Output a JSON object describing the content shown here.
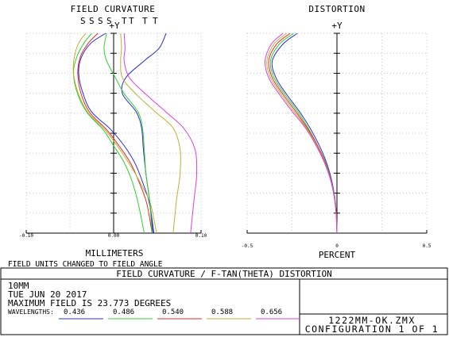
{
  "chart_data": [
    {
      "type": "line",
      "title": "FIELD CURVATURE",
      "xlabel": "MILLIMETERS",
      "ylabel": "+Y",
      "xlim": [
        -0.1,
        0.1
      ],
      "ylim": [
        0,
        23.773
      ],
      "x_ticks": [
        "-0.10",
        "0.00",
        "0.10"
      ],
      "legend": [
        "S",
        "S",
        "S",
        "S",
        "T",
        "T",
        "T",
        "T"
      ],
      "grid": true,
      "series": [
        {
          "name": "S",
          "color": "#2b2bd6",
          "points": [
            [
              -0.009,
              23.773
            ],
            [
              -0.026,
              22.6
            ],
            [
              -0.037,
              20.9
            ],
            [
              -0.04,
              19.0
            ],
            [
              -0.035,
              16.6
            ],
            [
              -0.025,
              14.4
            ],
            [
              -0.004,
              12.4
            ],
            [
              0.012,
              10.4
            ],
            [
              0.024,
              8.4
            ],
            [
              0.033,
              6.1
            ],
            [
              0.041,
              3.5
            ],
            [
              0.046,
              0
            ]
          ]
        },
        {
          "name": "S",
          "color": "#2fd02f",
          "points": [
            [
              -0.025,
              23.773
            ],
            [
              -0.034,
              22.6
            ],
            [
              -0.042,
              21.0
            ],
            [
              -0.046,
              19.0
            ],
            [
              -0.041,
              16.5
            ],
            [
              -0.03,
              14.3
            ],
            [
              -0.012,
              12.3
            ],
            [
              0.0,
              10.4
            ],
            [
              0.012,
              8.4
            ],
            [
              0.021,
              6.2
            ],
            [
              0.028,
              3.6
            ],
            [
              0.035,
              0
            ]
          ]
        },
        {
          "name": "S",
          "color": "#e02a2a",
          "points": [
            [
              -0.018,
              23.773
            ],
            [
              -0.029,
              22.6
            ],
            [
              -0.038,
              21.0
            ],
            [
              -0.041,
              19.0
            ],
            [
              -0.037,
              16.5
            ],
            [
              -0.027,
              14.3
            ],
            [
              -0.008,
              12.3
            ],
            [
              0.006,
              10.4
            ],
            [
              0.019,
              8.4
            ],
            [
              0.029,
              6.1
            ],
            [
              0.038,
              3.5
            ],
            [
              0.044,
              0
            ]
          ]
        },
        {
          "name": "S",
          "color": "#c0b030",
          "points": [
            [
              -0.032,
              23.773
            ],
            [
              -0.04,
              22.6
            ],
            [
              -0.045,
              20.9
            ],
            [
              -0.046,
              19.0
            ],
            [
              -0.04,
              16.5
            ],
            [
              -0.029,
              14.3
            ],
            [
              -0.01,
              12.3
            ],
            [
              0.004,
              10.4
            ],
            [
              0.017,
              8.4
            ],
            [
              0.03,
              6.1
            ],
            [
              0.042,
              3.5
            ],
            [
              0.049,
              0
            ]
          ]
        },
        {
          "name": "T",
          "color": "#2b2bd6",
          "points": [
            [
              0.06,
              23.773
            ],
            [
              0.052,
              22.0
            ],
            [
              0.035,
              20.5
            ],
            [
              0.014,
              18.5
            ],
            [
              0.01,
              16.6
            ],
            [
              0.026,
              14.4
            ],
            [
              0.032,
              12.5
            ],
            [
              0.034,
              10.0
            ],
            [
              0.037,
              7.0
            ],
            [
              0.041,
              4.0
            ],
            [
              0.045,
              0
            ]
          ]
        },
        {
          "name": "T",
          "color": "#2fd02f",
          "points": [
            [
              -0.008,
              23.773
            ],
            [
              -0.011,
              22.0
            ],
            [
              -0.008,
              20.5
            ],
            [
              0.002,
              18.5
            ],
            [
              0.012,
              16.6
            ],
            [
              0.028,
              14.4
            ],
            [
              0.033,
              12.5
            ],
            [
              0.035,
              10.0
            ],
            [
              0.037,
              7.0
            ],
            [
              0.041,
              4.0
            ],
            [
              0.044,
              0
            ]
          ]
        },
        {
          "name": "T",
          "color": "#c0b030",
          "points": [
            [
              0.008,
              23.773
            ],
            [
              0.009,
              22.0
            ],
            [
              0.008,
              20.5
            ],
            [
              0.01,
              18.5
            ],
            [
              0.025,
              16.6
            ],
            [
              0.048,
              14.4
            ],
            [
              0.068,
              12.5
            ],
            [
              0.076,
              10.0
            ],
            [
              0.076,
              7.0
            ],
            [
              0.072,
              4.0
            ],
            [
              0.068,
              0
            ]
          ]
        },
        {
          "name": "T",
          "color": "#e03ce0",
          "points": [
            [
              0.012,
              23.773
            ],
            [
              0.013,
              22.0
            ],
            [
              0.012,
              20.5
            ],
            [
              0.018,
              18.5
            ],
            [
              0.036,
              16.6
            ],
            [
              0.06,
              14.4
            ],
            [
              0.08,
              12.5
            ],
            [
              0.093,
              10.0
            ],
            [
              0.095,
              7.0
            ],
            [
              0.092,
              4.0
            ],
            [
              0.088,
              0
            ]
          ]
        }
      ]
    },
    {
      "type": "line",
      "title": "DISTORTION",
      "xlabel": "PERCENT",
      "ylabel": "+Y",
      "xlim": [
        -0.5,
        0.5
      ],
      "ylim": [
        0,
        23.773
      ],
      "x_ticks": [
        "-0.5",
        "0",
        "0.5"
      ],
      "grid": true,
      "series": [
        {
          "name": "0.436",
          "color": "#2b2bd6",
          "points": [
            [
              -0.22,
              23.773
            ],
            [
              -0.3,
              22.5
            ],
            [
              -0.36,
              20.5
            ],
            [
              -0.34,
              18.5
            ],
            [
              -0.28,
              16.5
            ],
            [
              -0.21,
              14.5
            ],
            [
              -0.15,
              12.5
            ],
            [
              -0.1,
              10.5
            ],
            [
              -0.06,
              8.5
            ],
            [
              -0.032,
              6.5
            ],
            [
              -0.014,
              4.5
            ],
            [
              -0.004,
              2.5
            ],
            [
              0,
              0
            ]
          ]
        },
        {
          "name": "0.486",
          "color": "#2fd02f",
          "points": [
            [
              -0.24,
              23.773
            ],
            [
              -0.32,
              22.5
            ],
            [
              -0.37,
              20.5
            ],
            [
              -0.35,
              18.5
            ],
            [
              -0.29,
              16.5
            ],
            [
              -0.22,
              14.5
            ],
            [
              -0.16,
              12.5
            ],
            [
              -0.11,
              10.5
            ],
            [
              -0.065,
              8.5
            ],
            [
              -0.035,
              6.5
            ],
            [
              -0.015,
              4.5
            ],
            [
              -0.004,
              2.5
            ],
            [
              0,
              0
            ]
          ]
        },
        {
          "name": "0.540",
          "color": "#e02a2a",
          "points": [
            [
              -0.26,
              23.773
            ],
            [
              -0.335,
              22.5
            ],
            [
              -0.38,
              20.5
            ],
            [
              -0.36,
              18.5
            ],
            [
              -0.3,
              16.5
            ],
            [
              -0.23,
              14.5
            ],
            [
              -0.165,
              12.5
            ],
            [
              -0.11,
              10.5
            ],
            [
              -0.068,
              8.5
            ],
            [
              -0.036,
              6.5
            ],
            [
              -0.016,
              4.5
            ],
            [
              -0.005,
              2.5
            ],
            [
              0,
              0
            ]
          ]
        },
        {
          "name": "0.588",
          "color": "#c0b030",
          "points": [
            [
              -0.28,
              23.773
            ],
            [
              -0.35,
              22.5
            ],
            [
              -0.39,
              20.5
            ],
            [
              -0.37,
              18.5
            ],
            [
              -0.31,
              16.5
            ],
            [
              -0.24,
              14.5
            ],
            [
              -0.17,
              12.5
            ],
            [
              -0.115,
              10.5
            ],
            [
              -0.07,
              8.5
            ],
            [
              -0.037,
              6.5
            ],
            [
              -0.016,
              4.5
            ],
            [
              -0.005,
              2.5
            ],
            [
              0,
              0
            ]
          ]
        },
        {
          "name": "0.656",
          "color": "#e03ce0",
          "points": [
            [
              -0.3,
              23.773
            ],
            [
              -0.365,
              22.5
            ],
            [
              -0.4,
              20.5
            ],
            [
              -0.38,
              18.5
            ],
            [
              -0.32,
              16.5
            ],
            [
              -0.25,
              14.5
            ],
            [
              -0.175,
              12.5
            ],
            [
              -0.118,
              10.5
            ],
            [
              -0.072,
              8.5
            ],
            [
              -0.038,
              6.5
            ],
            [
              -0.017,
              4.5
            ],
            [
              -0.005,
              2.5
            ],
            [
              0,
              0
            ]
          ]
        }
      ]
    }
  ],
  "legend_letters": {
    "s": [
      "S",
      "S",
      "S",
      "S"
    ],
    "t": [
      "T",
      "T",
      "T",
      "T"
    ],
    "s_colors": [
      "#c0b030",
      "#e02a2a",
      "#2b2bd6",
      "#e03ce0"
    ],
    "t_colors": [
      "#c0b030",
      "#2fd02f",
      "#e03ce0",
      "#2b2bd6"
    ]
  },
  "notes": {
    "units_changed": "FIELD UNITS CHANGED TO FIELD ANGLE"
  },
  "footer": {
    "title": "FIELD CURVATURE / F-TAN(THETA) DISTORTION",
    "lens": "10MM",
    "date": "TUE JUN 20 2017",
    "max_field": "MAXIMUM FIELD IS 23.773 DEGREES",
    "wavelengths_label": "WAVELENGTHS:",
    "wavelengths": [
      {
        "value": "0.436",
        "color": "#2b2bd6"
      },
      {
        "value": "0.486",
        "color": "#2fd02f"
      },
      {
        "value": "0.540",
        "color": "#e02a2a"
      },
      {
        "value": "0.588",
        "color": "#c0b030"
      },
      {
        "value": "0.656",
        "color": "#e03ce0"
      }
    ],
    "filename": "1222MM-OK.ZMX",
    "configuration": "CONFIGURATION 1 OF 1"
  }
}
